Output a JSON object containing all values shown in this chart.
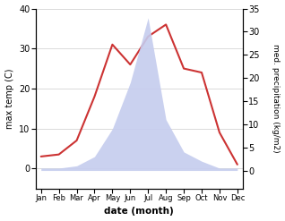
{
  "months": [
    "Jan",
    "Feb",
    "Mar",
    "Apr",
    "May",
    "Jun",
    "Jul",
    "Aug",
    "Sep",
    "Oct",
    "Nov",
    "Dec"
  ],
  "x": [
    0,
    1,
    2,
    3,
    4,
    5,
    6,
    7,
    8,
    9,
    10,
    11
  ],
  "temperature": [
    3,
    3.5,
    7,
    18,
    31,
    26,
    33,
    36,
    25,
    24,
    9,
    1
  ],
  "precipitation": [
    0.5,
    0.5,
    1,
    3,
    9,
    19,
    33,
    11,
    4,
    2,
    0.5,
    0.5
  ],
  "temp_color": "#cc3333",
  "precip_fill_color": "#c5ccee",
  "left_ylim": [
    -5,
    40
  ],
  "right_ylim": [
    0,
    35
  ],
  "left_yticks": [
    0,
    10,
    20,
    30,
    40
  ],
  "right_yticks": [
    0,
    5,
    10,
    15,
    20,
    25,
    30,
    35
  ],
  "xlabel": "date (month)",
  "ylabel_left": "max temp (C)",
  "ylabel_right": "med. precipitation (kg/m2)",
  "background_color": "#ffffff",
  "grid_color": "#cccccc",
  "temp_linewidth": 1.5,
  "fill_alpha": 0.9
}
